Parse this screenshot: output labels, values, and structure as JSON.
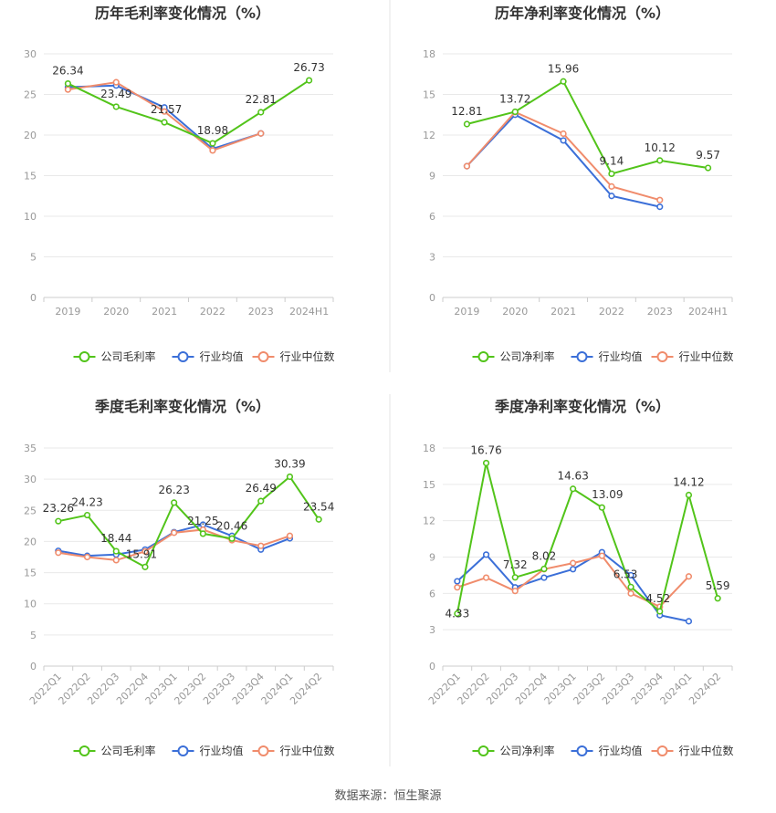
{
  "footer": "数据来源：恒生聚源",
  "colors": {
    "company": "#52c41a",
    "industry_avg": "#3b6fd8",
    "industry_median": "#f08c6c"
  },
  "chart_data": [
    {
      "id": "annual-gross",
      "type": "line",
      "title": "历年毛利率变化情况（%）",
      "categories": [
        "2019",
        "2020",
        "2021",
        "2022",
        "2023",
        "2024H1"
      ],
      "ylim": [
        0,
        30
      ],
      "yticks": [
        0,
        5,
        10,
        15,
        20,
        25,
        30
      ],
      "series": [
        {
          "name": "公司毛利率",
          "key": "company",
          "values": [
            26.34,
            23.49,
            21.57,
            18.98,
            22.81,
            26.73
          ],
          "labels": true
        },
        {
          "name": "行业均值",
          "key": "industry_avg",
          "values": [
            25.9,
            26.1,
            23.4,
            18.3,
            20.2,
            null
          ],
          "labels": false
        },
        {
          "name": "行业中位数",
          "key": "industry_median",
          "values": [
            25.6,
            26.5,
            22.9,
            18.1,
            20.2,
            null
          ],
          "labels": false
        }
      ]
    },
    {
      "id": "annual-net",
      "type": "line",
      "title": "历年净利率变化情况（%）",
      "categories": [
        "2019",
        "2020",
        "2021",
        "2022",
        "2023",
        "2024H1"
      ],
      "ylim": [
        0,
        18
      ],
      "yticks": [
        0,
        3,
        6,
        9,
        12,
        15,
        18
      ],
      "series": [
        {
          "name": "公司净利率",
          "key": "company",
          "values": [
            12.81,
            13.72,
            15.96,
            9.14,
            10.12,
            9.57
          ],
          "labels": true
        },
        {
          "name": "行业均值",
          "key": "industry_avg",
          "values": [
            9.7,
            13.5,
            11.6,
            7.5,
            6.7,
            null
          ],
          "labels": false
        },
        {
          "name": "行业中位数",
          "key": "industry_median",
          "values": [
            9.7,
            13.7,
            12.1,
            8.2,
            7.2,
            null
          ],
          "labels": false
        }
      ]
    },
    {
      "id": "quarterly-gross",
      "type": "line",
      "title": "季度毛利率变化情况（%）",
      "categories": [
        "2022Q1",
        "2022Q2",
        "2022Q3",
        "2022Q4",
        "2023Q1",
        "2023Q2",
        "2023Q3",
        "2023Q4",
        "2024Q1",
        "2024Q2"
      ],
      "ylim": [
        0,
        35
      ],
      "yticks": [
        0,
        5,
        10,
        15,
        20,
        25,
        30,
        35
      ],
      "series": [
        {
          "name": "公司毛利率",
          "key": "company",
          "values": [
            23.26,
            24.23,
            18.44,
            15.91,
            26.23,
            21.25,
            20.46,
            26.49,
            30.39,
            23.54
          ],
          "labels": true
        },
        {
          "name": "行业均值",
          "key": "industry_avg",
          "values": [
            18.5,
            17.7,
            17.9,
            18.7,
            21.5,
            22.7,
            20.9,
            18.7,
            20.5,
            null
          ],
          "labels": false
        },
        {
          "name": "行业中位数",
          "key": "industry_median",
          "values": [
            18.2,
            17.5,
            17.0,
            18.4,
            21.4,
            21.9,
            20.2,
            19.3,
            20.9,
            null
          ],
          "labels": false
        }
      ]
    },
    {
      "id": "quarterly-net",
      "type": "line",
      "title": "季度净利率变化情况（%）",
      "categories": [
        "2022Q1",
        "2022Q2",
        "2022Q3",
        "2022Q4",
        "2023Q1",
        "2023Q2",
        "2023Q3",
        "2023Q4",
        "2024Q1",
        "2024Q2"
      ],
      "ylim": [
        0,
        18
      ],
      "yticks": [
        0,
        3,
        6,
        9,
        12,
        15,
        18
      ],
      "series": [
        {
          "name": "公司净利率",
          "key": "company",
          "values": [
            4.33,
            16.76,
            7.32,
            8.02,
            14.63,
            13.09,
            6.53,
            4.52,
            14.12,
            5.59
          ],
          "labels": true
        },
        {
          "name": "行业均值",
          "key": "industry_avg",
          "values": [
            7.0,
            9.2,
            6.5,
            7.3,
            8.0,
            9.4,
            7.5,
            4.2,
            3.7,
            null
          ],
          "labels": false
        },
        {
          "name": "行业中位数",
          "key": "industry_median",
          "values": [
            6.5,
            7.3,
            6.2,
            8.0,
            8.5,
            9.1,
            6.0,
            4.9,
            7.4,
            null
          ],
          "labels": false
        }
      ]
    }
  ]
}
